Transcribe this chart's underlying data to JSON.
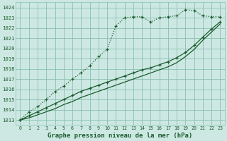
{
  "title": "Graphe pression niveau de la mer (hPa)",
  "bg_color": "#cde8e2",
  "grid_color": "#88bfb0",
  "line_color": "#1a5c2e",
  "ylim_min": 1012.5,
  "ylim_max": 1024.5,
  "xlim_min": -0.5,
  "xlim_max": 23.5,
  "yticks": [
    1013,
    1014,
    1015,
    1016,
    1017,
    1018,
    1019,
    1020,
    1021,
    1022,
    1023,
    1024
  ],
  "line1_x": [
    0,
    1,
    2,
    3,
    4,
    5,
    6,
    7,
    8,
    9,
    10,
    11,
    12,
    13,
    14,
    15,
    16,
    17,
    18,
    19,
    20,
    21,
    22,
    23
  ],
  "line1_y": [
    1013.0,
    1013.8,
    1014.3,
    1015.0,
    1015.8,
    1016.3,
    1017.0,
    1017.6,
    1018.3,
    1019.2,
    1019.9,
    1022.2,
    1023.0,
    1023.1,
    1023.1,
    1022.6,
    1023.0,
    1023.1,
    1023.2,
    1023.8,
    1023.7,
    1023.2,
    1023.1,
    1023.1
  ],
  "line2_x": [
    0,
    1,
    2,
    3,
    4,
    5,
    6,
    7,
    8,
    9,
    10,
    11,
    12,
    13,
    14,
    15,
    16,
    17,
    18,
    19,
    20,
    21,
    22,
    23
  ],
  "line2_y": [
    1013.0,
    1013.4,
    1013.8,
    1014.2,
    1014.6,
    1015.0,
    1015.4,
    1015.8,
    1016.1,
    1016.4,
    1016.7,
    1017.0,
    1017.3,
    1017.6,
    1017.9,
    1018.1,
    1018.4,
    1018.7,
    1019.1,
    1019.6,
    1020.3,
    1021.1,
    1021.9,
    1022.6
  ],
  "line3_x": [
    0,
    1,
    2,
    3,
    4,
    5,
    6,
    7,
    8,
    9,
    10,
    11,
    12,
    13,
    14,
    15,
    16,
    17,
    18,
    19,
    20,
    21,
    22,
    23
  ],
  "line3_y": [
    1013.0,
    1013.2,
    1013.5,
    1013.8,
    1014.1,
    1014.5,
    1014.8,
    1015.2,
    1015.5,
    1015.8,
    1016.1,
    1016.4,
    1016.7,
    1017.0,
    1017.3,
    1017.6,
    1017.9,
    1018.2,
    1018.6,
    1019.2,
    1019.9,
    1020.8,
    1021.6,
    1022.4
  ]
}
